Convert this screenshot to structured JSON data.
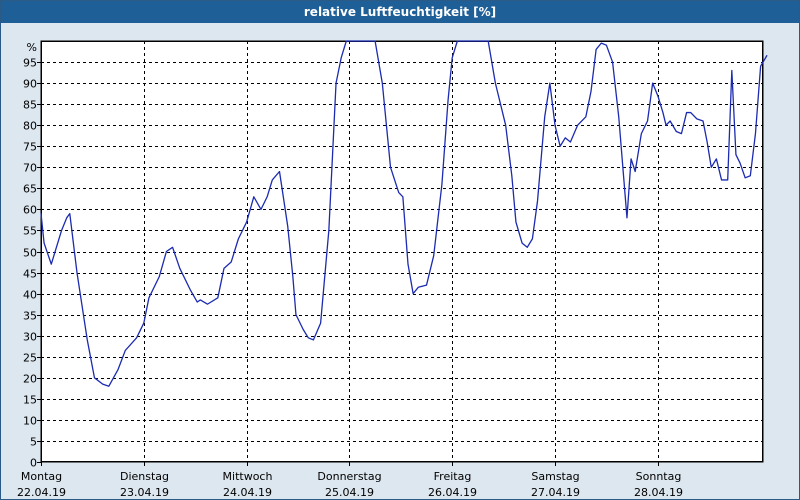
{
  "window": {
    "title": "relative Luftfeuchtigkeit [%]"
  },
  "chart_data": {
    "type": "line",
    "title": "relative Luftfeuchtigkeit [%]",
    "ylabel": "%",
    "xlabel": "",
    "ylim": [
      0,
      100
    ],
    "yticks": [
      0,
      5,
      10,
      15,
      20,
      25,
      30,
      35,
      40,
      45,
      50,
      55,
      60,
      65,
      70,
      75,
      80,
      85,
      90,
      95
    ],
    "xlim": [
      0,
      7
    ],
    "x_unit": "days",
    "x_ticks": [
      {
        "day": "Montag",
        "date": "22.04.19"
      },
      {
        "day": "Dienstag",
        "date": "23.04.19"
      },
      {
        "day": "Mittwoch",
        "date": "24.04.19"
      },
      {
        "day": "Donnerstag",
        "date": "25.04.19"
      },
      {
        "day": "Freitag",
        "date": "26.04.19"
      },
      {
        "day": "Samstag",
        "date": "27.04.19"
      },
      {
        "day": "Sonntag",
        "date": "28.04.19"
      }
    ],
    "grid": true,
    "colors": {
      "line": "#1c2bb0",
      "grid": "#000000",
      "axis": "#000000",
      "plot_bg": "#ffffff",
      "titlebar_bg": "#1f5f98",
      "titlebar_text": "#ffffff",
      "frame_bg": "#dde7ef"
    },
    "series": [
      {
        "name": "",
        "points": [
          [
            0.0,
            59
          ],
          [
            0.03,
            52
          ],
          [
            0.1,
            47
          ],
          [
            0.2,
            55
          ],
          [
            0.25,
            58
          ],
          [
            0.28,
            59
          ],
          [
            0.35,
            45
          ],
          [
            0.45,
            29
          ],
          [
            0.52,
            20
          ],
          [
            0.6,
            18.5
          ],
          [
            0.66,
            18
          ],
          [
            0.75,
            22
          ],
          [
            0.82,
            26.5
          ],
          [
            0.93,
            29.5
          ],
          [
            1.0,
            33
          ],
          [
            1.05,
            39
          ],
          [
            1.15,
            44
          ],
          [
            1.22,
            50
          ],
          [
            1.28,
            51
          ],
          [
            1.35,
            46
          ],
          [
            1.45,
            41
          ],
          [
            1.52,
            38
          ],
          [
            1.55,
            38.5
          ],
          [
            1.62,
            37.5
          ],
          [
            1.72,
            39
          ],
          [
            1.78,
            46
          ],
          [
            1.85,
            47.5
          ],
          [
            1.92,
            53
          ],
          [
            2.0,
            57
          ],
          [
            2.07,
            63
          ],
          [
            2.14,
            60
          ],
          [
            2.2,
            63
          ],
          [
            2.25,
            67
          ],
          [
            2.32,
            69
          ],
          [
            2.4,
            56
          ],
          [
            2.45,
            44
          ],
          [
            2.48,
            35
          ],
          [
            2.55,
            31.5
          ],
          [
            2.6,
            29.5
          ],
          [
            2.65,
            29
          ],
          [
            2.72,
            33
          ],
          [
            2.8,
            55
          ],
          [
            2.87,
            90
          ],
          [
            2.92,
            96
          ],
          [
            2.97,
            100
          ],
          [
            3.25,
            100
          ],
          [
            3.32,
            90
          ],
          [
            3.4,
            70
          ],
          [
            3.48,
            64
          ],
          [
            3.52,
            63
          ],
          [
            3.57,
            47
          ],
          [
            3.62,
            40
          ],
          [
            3.67,
            41.5
          ],
          [
            3.75,
            42
          ],
          [
            3.82,
            49
          ],
          [
            3.9,
            66
          ],
          [
            3.96,
            86
          ],
          [
            4.0,
            96
          ],
          [
            4.05,
            100
          ],
          [
            4.35,
            100
          ],
          [
            4.42,
            90
          ],
          [
            4.52,
            80
          ],
          [
            4.58,
            68
          ],
          [
            4.62,
            57
          ],
          [
            4.68,
            52
          ],
          [
            4.73,
            51
          ],
          [
            4.78,
            53
          ],
          [
            4.83,
            62
          ],
          [
            4.9,
            82
          ],
          [
            4.95,
            90
          ],
          [
            5.0,
            80
          ],
          [
            5.05,
            75
          ],
          [
            5.1,
            77
          ],
          [
            5.15,
            76
          ],
          [
            5.22,
            80
          ],
          [
            5.3,
            82
          ],
          [
            5.35,
            88
          ],
          [
            5.4,
            98
          ],
          [
            5.45,
            99.5
          ],
          [
            5.5,
            99
          ],
          [
            5.56,
            95
          ],
          [
            5.62,
            82
          ],
          [
            5.7,
            58
          ],
          [
            5.74,
            72
          ],
          [
            5.78,
            69
          ],
          [
            5.84,
            78
          ],
          [
            5.9,
            81
          ],
          [
            5.95,
            90
          ],
          [
            6.0,
            87
          ],
          [
            6.05,
            83
          ],
          [
            6.08,
            80
          ],
          [
            6.12,
            81
          ],
          [
            6.18,
            78.5
          ],
          [
            6.23,
            78
          ],
          [
            6.28,
            83
          ],
          [
            6.32,
            83
          ],
          [
            6.38,
            81.5
          ],
          [
            6.44,
            81
          ],
          [
            6.48,
            76
          ],
          [
            6.52,
            70
          ],
          [
            6.57,
            72
          ],
          [
            6.62,
            67
          ],
          [
            6.68,
            67
          ],
          [
            6.72,
            93
          ],
          [
            6.76,
            73
          ],
          [
            6.8,
            71
          ],
          [
            6.85,
            67.5
          ],
          [
            6.9,
            68
          ],
          [
            6.95,
            78
          ],
          [
            7.0,
            94
          ],
          [
            7.06,
            96.5
          ]
        ]
      }
    ]
  }
}
